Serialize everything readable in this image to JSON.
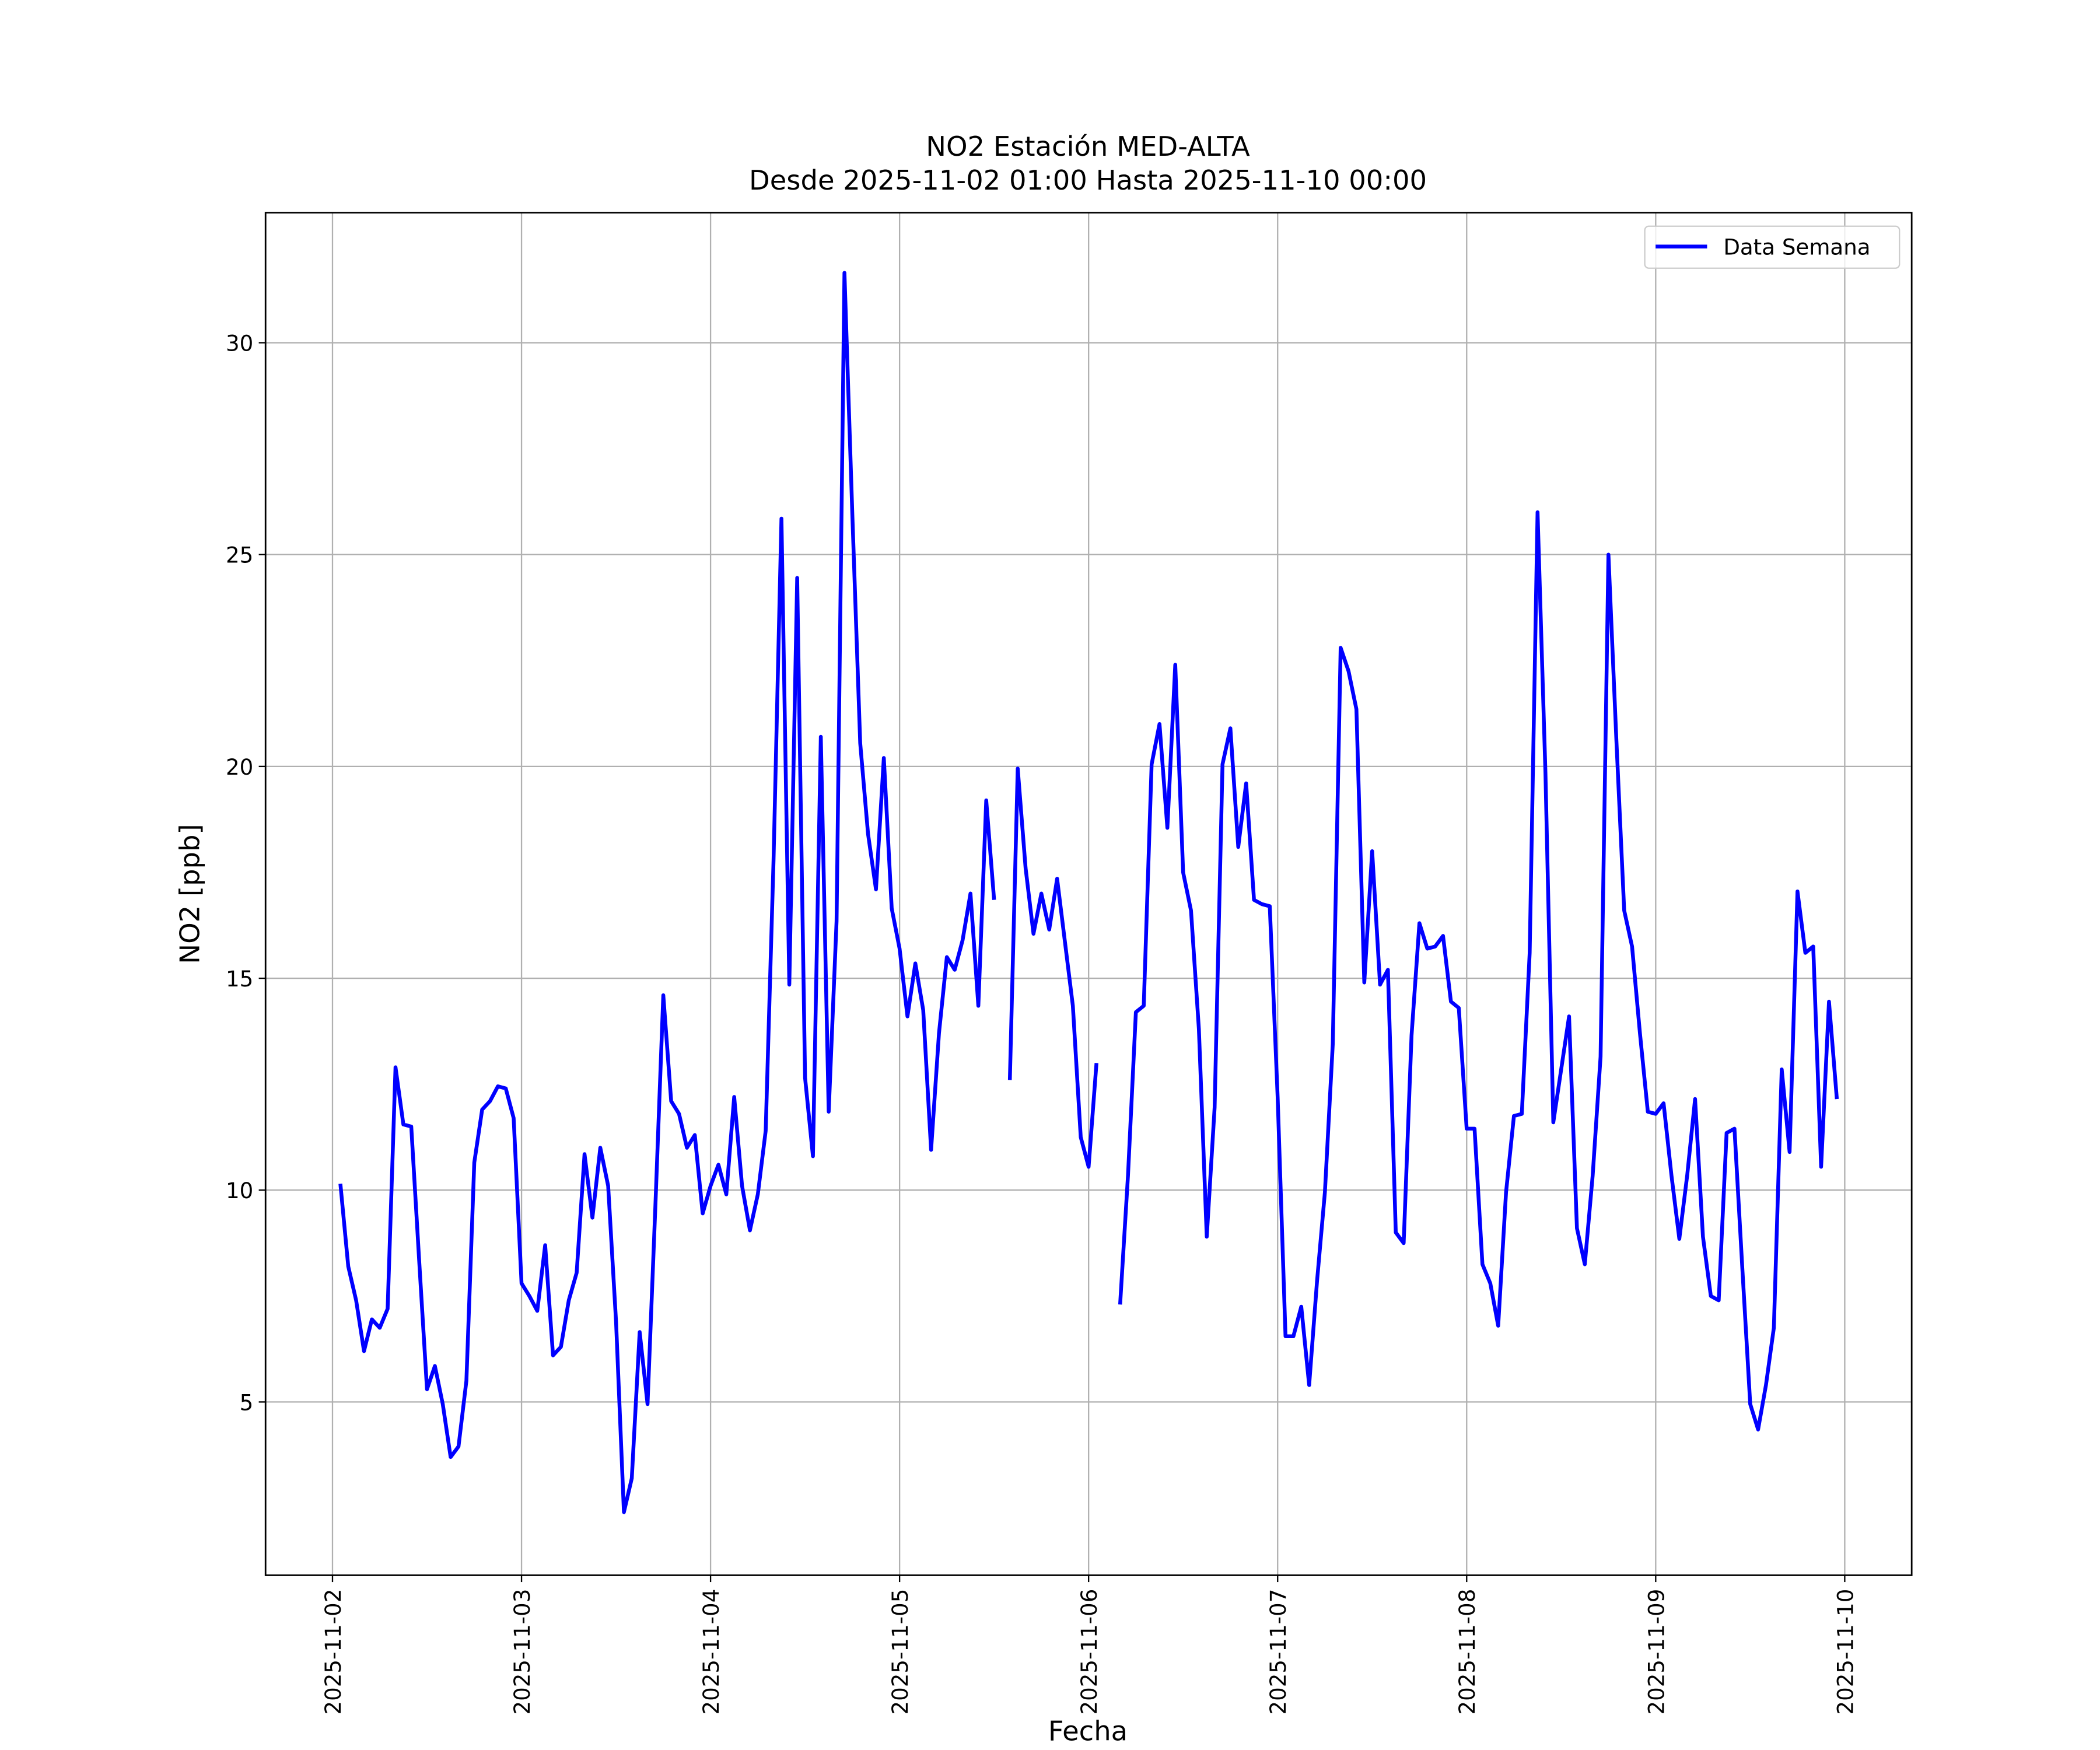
{
  "chart_data": {
    "type": "line",
    "title": "NO2 Estación MED-ALTA",
    "subtitle": "Desde 2025-11-02 01:00 Hasta 2025-11-10 00:00",
    "xlabel": "Fecha",
    "ylabel": "NO2 [ppb]",
    "xlim": [
      "2025-11-01 15:30",
      "2025-11-10 08:30"
    ],
    "xticks": [
      "2025-11-02",
      "2025-11-03",
      "2025-11-04",
      "2025-11-05",
      "2025-11-06",
      "2025-11-07",
      "2025-11-08",
      "2025-11-09",
      "2025-11-10"
    ],
    "ylim": [
      0.91,
      33.07
    ],
    "yticks": [
      5,
      10,
      15,
      20,
      25,
      30
    ],
    "grid": true,
    "legend": "upper right",
    "x": [
      "2025-11-02 01:00",
      "2025-11-02 02:00",
      "2025-11-02 03:00",
      "2025-11-02 04:00",
      "2025-11-02 05:00",
      "2025-11-02 06:00",
      "2025-11-02 07:00",
      "2025-11-02 08:00",
      "2025-11-02 09:00",
      "2025-11-02 10:00",
      "2025-11-02 11:00",
      "2025-11-02 12:00",
      "2025-11-02 13:00",
      "2025-11-02 14:00",
      "2025-11-02 15:00",
      "2025-11-02 16:00",
      "2025-11-02 17:00",
      "2025-11-02 18:00",
      "2025-11-02 19:00",
      "2025-11-02 20:00",
      "2025-11-02 21:00",
      "2025-11-02 22:00",
      "2025-11-02 23:00",
      "2025-11-03 00:00",
      "2025-11-03 01:00",
      "2025-11-03 02:00",
      "2025-11-03 03:00",
      "2025-11-03 04:00",
      "2025-11-03 05:00",
      "2025-11-03 06:00",
      "2025-11-03 07:00",
      "2025-11-03 08:00",
      "2025-11-03 09:00",
      "2025-11-03 10:00",
      "2025-11-03 11:00",
      "2025-11-03 12:00",
      "2025-11-03 13:00",
      "2025-11-03 14:00",
      "2025-11-03 15:00",
      "2025-11-03 16:00",
      "2025-11-03 17:00",
      "2025-11-03 18:00",
      "2025-11-03 19:00",
      "2025-11-03 20:00",
      "2025-11-03 21:00",
      "2025-11-03 22:00",
      "2025-11-03 23:00",
      "2025-11-04 00:00",
      "2025-11-04 01:00",
      "2025-11-04 02:00",
      "2025-11-04 03:00",
      "2025-11-04 04:00",
      "2025-11-04 05:00",
      "2025-11-04 06:00",
      "2025-11-04 07:00",
      "2025-11-04 08:00",
      "2025-11-04 09:00",
      "2025-11-04 10:00",
      "2025-11-04 11:00",
      "2025-11-04 12:00",
      "2025-11-04 13:00",
      "2025-11-04 14:00",
      "2025-11-04 15:00",
      "2025-11-04 16:00",
      "2025-11-04 17:00",
      "2025-11-04 18:00",
      "2025-11-04 19:00",
      "2025-11-04 20:00",
      "2025-11-04 21:00",
      "2025-11-04 22:00",
      "2025-11-04 23:00",
      "2025-11-05 00:00",
      "2025-11-05 01:00",
      "2025-11-05 02:00",
      "2025-11-05 03:00",
      "2025-11-05 04:00",
      "2025-11-05 05:00",
      "2025-11-05 06:00",
      "2025-11-05 07:00",
      "2025-11-05 08:00",
      "2025-11-05 09:00",
      "2025-11-05 10:00",
      "2025-11-05 11:00",
      "2025-11-05 12:00",
      "2025-11-05 13:00",
      "2025-11-05 14:00",
      "2025-11-05 15:00",
      "2025-11-05 16:00",
      "2025-11-05 17:00",
      "2025-11-05 18:00",
      "2025-11-05 19:00",
      "2025-11-05 20:00",
      "2025-11-05 21:00",
      "2025-11-05 22:00",
      "2025-11-05 23:00",
      "2025-11-06 00:00",
      "2025-11-06 01:00",
      "2025-11-06 02:00",
      "2025-11-06 03:00",
      "2025-11-06 04:00",
      "2025-11-06 05:00",
      "2025-11-06 06:00",
      "2025-11-06 07:00",
      "2025-11-06 08:00",
      "2025-11-06 09:00",
      "2025-11-06 10:00",
      "2025-11-06 11:00",
      "2025-11-06 12:00",
      "2025-11-06 13:00",
      "2025-11-06 14:00",
      "2025-11-06 15:00",
      "2025-11-06 16:00",
      "2025-11-06 17:00",
      "2025-11-06 18:00",
      "2025-11-06 19:00",
      "2025-11-06 20:00",
      "2025-11-06 21:00",
      "2025-11-06 22:00",
      "2025-11-06 23:00",
      "2025-11-07 00:00",
      "2025-11-07 01:00",
      "2025-11-07 02:00",
      "2025-11-07 03:00",
      "2025-11-07 04:00",
      "2025-11-07 05:00",
      "2025-11-07 06:00",
      "2025-11-07 07:00",
      "2025-11-07 08:00",
      "2025-11-07 09:00",
      "2025-11-07 10:00",
      "2025-11-07 11:00",
      "2025-11-07 12:00",
      "2025-11-07 13:00",
      "2025-11-07 14:00",
      "2025-11-07 15:00",
      "2025-11-07 16:00",
      "2025-11-07 17:00",
      "2025-11-07 18:00",
      "2025-11-07 19:00",
      "2025-11-07 20:00",
      "2025-11-07 21:00",
      "2025-11-07 22:00",
      "2025-11-07 23:00",
      "2025-11-08 00:00",
      "2025-11-08 01:00",
      "2025-11-08 02:00",
      "2025-11-08 03:00",
      "2025-11-08 04:00",
      "2025-11-08 05:00",
      "2025-11-08 06:00",
      "2025-11-08 07:00",
      "2025-11-08 08:00",
      "2025-11-08 09:00",
      "2025-11-08 10:00",
      "2025-11-08 11:00",
      "2025-11-08 12:00",
      "2025-11-08 13:00",
      "2025-11-08 14:00",
      "2025-11-08 15:00",
      "2025-11-08 16:00",
      "2025-11-08 17:00",
      "2025-11-08 18:00",
      "2025-11-08 19:00",
      "2025-11-08 20:00",
      "2025-11-08 21:00",
      "2025-11-08 22:00",
      "2025-11-08 23:00",
      "2025-11-09 00:00",
      "2025-11-09 01:00",
      "2025-11-09 02:00",
      "2025-11-09 03:00",
      "2025-11-09 04:00",
      "2025-11-09 05:00",
      "2025-11-09 06:00",
      "2025-11-09 07:00",
      "2025-11-09 08:00",
      "2025-11-09 09:00",
      "2025-11-09 10:00",
      "2025-11-09 11:00",
      "2025-11-09 12:00",
      "2025-11-09 13:00",
      "2025-11-09 14:00",
      "2025-11-09 15:00",
      "2025-11-09 16:00",
      "2025-11-09 17:00",
      "2025-11-09 18:00",
      "2025-11-09 19:00",
      "2025-11-09 20:00",
      "2025-11-09 21:00",
      "2025-11-09 22:00",
      "2025-11-09 23:00"
    ],
    "series": [
      {
        "name": "Data Semana",
        "color": "#0000ff",
        "values": [
          10.15,
          8.2,
          7.4,
          6.2,
          6.95,
          6.75,
          7.2,
          12.9,
          11.55,
          11.5,
          8.35,
          5.3,
          5.85,
          4.95,
          3.7,
          3.95,
          5.5,
          10.65,
          11.9,
          12.1,
          12.45,
          12.4,
          11.7,
          7.8,
          7.5,
          7.15,
          8.7,
          6.1,
          6.3,
          7.4,
          8.05,
          10.85,
          9.35,
          11.0,
          10.1,
          6.9,
          2.4,
          3.2,
          6.65,
          4.95,
          9.65,
          14.6,
          12.1,
          11.8,
          11.0,
          11.3,
          9.45,
          10.1,
          10.6,
          9.9,
          12.2,
          10.1,
          9.05,
          9.9,
          11.4,
          17.8,
          25.85,
          14.85,
          24.45,
          12.65,
          10.8,
          20.7,
          11.85,
          16.35,
          31.65,
          25.95,
          20.55,
          18.4,
          17.1,
          20.2,
          16.65,
          15.7,
          14.1,
          15.35,
          14.25,
          10.95,
          13.7,
          15.5,
          15.2,
          15.9,
          17.0,
          14.35,
          19.2,
          16.85,
          null,
          12.6,
          19.95,
          17.6,
          16.05,
          17.0,
          16.15,
          17.35,
          15.85,
          14.35,
          11.25,
          10.55,
          13.0,
          null,
          null,
          7.3,
          10.35,
          14.2,
          14.35,
          20.05,
          21.0,
          18.55,
          22.4,
          17.5,
          16.6,
          13.8,
          8.9,
          11.95,
          20.05,
          20.9,
          18.1,
          19.6,
          16.85,
          16.75,
          16.7,
          12.2,
          6.55,
          6.55,
          7.25,
          5.4,
          7.85,
          9.95,
          13.45,
          22.8,
          22.25,
          21.35,
          14.9,
          18.0,
          14.85,
          15.2,
          9.0,
          8.75,
          13.65,
          16.3,
          15.7,
          15.75,
          16.0,
          14.45,
          14.3,
          11.45,
          11.45,
          8.25,
          7.8,
          6.8,
          9.95,
          11.75,
          11.8,
          15.6,
          26.0,
          19.85,
          11.6,
          12.85,
          14.1,
          9.1,
          8.25,
          10.35,
          13.15,
          25.0,
          20.65,
          16.6,
          15.75,
          13.7,
          11.85,
          11.8,
          12.05,
          10.35,
          8.85,
          10.35,
          12.15,
          8.9,
          7.5,
          7.4,
          11.35,
          11.45,
          8.15,
          4.95,
          4.35,
          5.4,
          6.75,
          12.85,
          10.9,
          17.05,
          15.6,
          15.75,
          10.55,
          14.45,
          12.15
        ]
      }
    ]
  }
}
